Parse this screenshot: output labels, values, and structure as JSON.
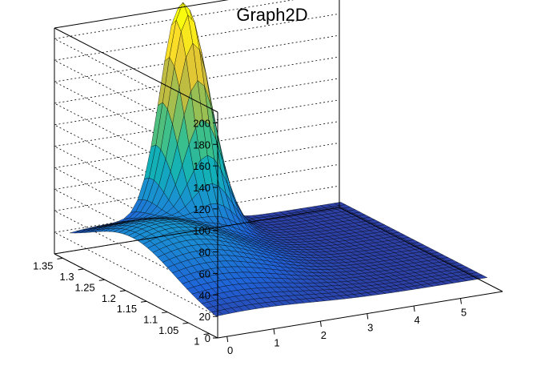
{
  "chart_data": {
    "type": "surface",
    "title": "Graph2D",
    "x_ticks": [
      "0",
      "1",
      "2",
      "3",
      "4",
      "5"
    ],
    "y_ticks": [
      "1",
      "1.05",
      "1.1",
      "1.15",
      "1.2",
      "1.25",
      "1.3",
      "1.35"
    ],
    "z_ticks": [
      "0",
      "20",
      "40",
      "60",
      "80",
      "100",
      "120",
      "140",
      "160",
      "180",
      "200"
    ],
    "xlim": [
      -0.2,
      5.9
    ],
    "ylim": [
      0.98,
      1.37
    ],
    "zlim": [
      0,
      210
    ],
    "colormap": [
      "#352a87",
      "#1f63d8",
      "#1a8fd2",
      "#12b0b8",
      "#3bbf8b",
      "#8ac05a",
      "#d2bb3a",
      "#f9d92a",
      "#f9fb0e"
    ],
    "peaks": [
      {
        "x": 2.3,
        "y": 1.34,
        "z": 205,
        "sx": 0.42,
        "sy": 0.04
      },
      {
        "x": 0.7,
        "y": 1.2,
        "z": 45,
        "sx": 1.3,
        "sy": 0.1
      }
    ],
    "base_level": 10
  }
}
